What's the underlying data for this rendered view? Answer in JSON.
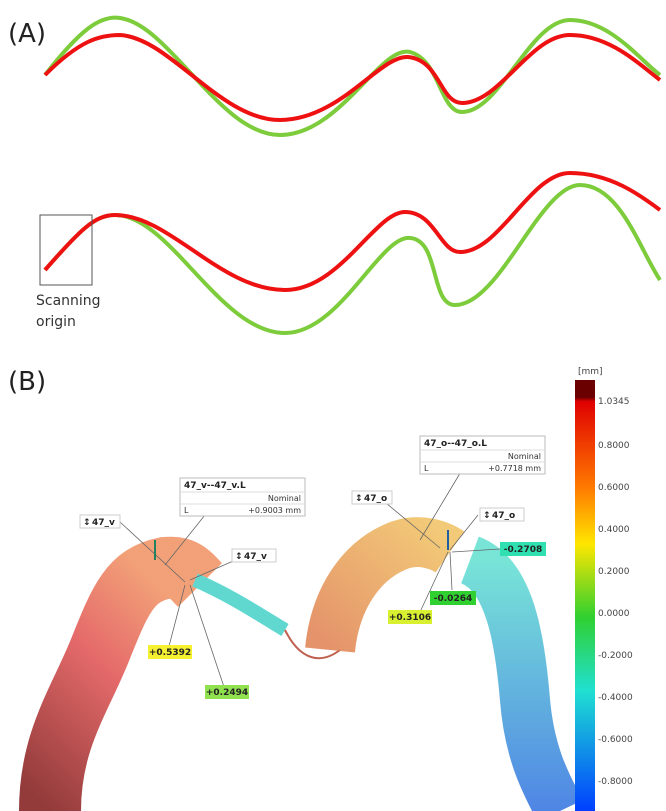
{
  "panel_a": {
    "label": "(A)",
    "annotation": [
      "Scanning",
      "origin"
    ]
  },
  "panel_b": {
    "label": "(B)",
    "colorbar": {
      "unit": "[mm]",
      "ticks": [
        "1.0345",
        "0.8000",
        "0.6000",
        "0.4000",
        "0.2000",
        "0.0000",
        "-0.2000",
        "-0.4000",
        "-0.6000",
        "-0.8000"
      ]
    },
    "left": {
      "tag_1": "47_v",
      "tag_2": "47_v",
      "box": {
        "title": "47_v--47_v.L",
        "header": "Nominal",
        "row_label": "L",
        "value": "+0.9003 mm"
      },
      "deviations": [
        "+0.5392",
        "+0.2494"
      ]
    },
    "right": {
      "tag_1": "47_o",
      "tag_2": "47_o",
      "box": {
        "title": "47_o--47_o.L",
        "header": "Nominal",
        "row_label": "L",
        "value": "+0.7718 mm"
      },
      "deviations": [
        "-0.2708",
        "-0.0264",
        "+0.3106"
      ]
    }
  }
}
